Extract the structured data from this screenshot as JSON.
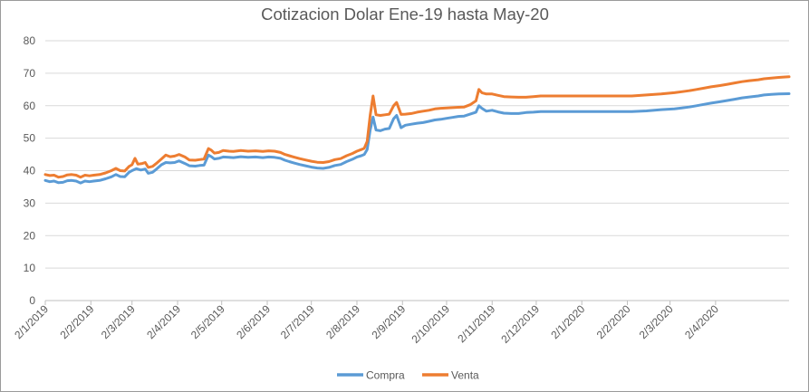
{
  "chart_data": {
    "type": "line",
    "title": "Cotizacion Dolar Ene-19 hasta May-20",
    "xlabel": "",
    "ylabel": "",
    "ylim": [
      0,
      80
    ],
    "yticks": [
      "0",
      "10",
      "20",
      "30",
      "40",
      "50",
      "60",
      "70",
      "80"
    ],
    "xticks": [
      "2/1/2019",
      "2/2/2019",
      "2/3/2019",
      "2/4/2019",
      "2/5/2019",
      "2/6/2019",
      "2/7/2019",
      "2/8/2019",
      "2/9/2019",
      "2/10/2019",
      "2/11/2019",
      "2/12/2019",
      "2/1/2020",
      "2/2/2020",
      "2/3/2020",
      "2/4/2020"
    ],
    "grid": "horizontal",
    "legend_position": "bottom",
    "x_format": "d/m/yyyy",
    "x_range": [
      "2019-01-02",
      "2020-05-22"
    ],
    "series": [
      {
        "name": "Compra",
        "color": "#5b9bd5",
        "points": [
          [
            "2019-01-02",
            37.0
          ],
          [
            "2019-01-05",
            36.6
          ],
          [
            "2019-01-08",
            36.8
          ],
          [
            "2019-01-11",
            36.3
          ],
          [
            "2019-01-14",
            36.4
          ],
          [
            "2019-01-17",
            36.9
          ],
          [
            "2019-01-20",
            37.0
          ],
          [
            "2019-01-23",
            36.8
          ],
          [
            "2019-01-26",
            36.2
          ],
          [
            "2019-01-29",
            36.8
          ],
          [
            "2019-02-01",
            36.6
          ],
          [
            "2019-02-04",
            36.8
          ],
          [
            "2019-02-08",
            37.0
          ],
          [
            "2019-02-12",
            37.5
          ],
          [
            "2019-02-16",
            38.1
          ],
          [
            "2019-02-19",
            38.8
          ],
          [
            "2019-02-22",
            38.2
          ],
          [
            "2019-02-25",
            38.1
          ],
          [
            "2019-02-28",
            39.5
          ],
          [
            "2019-03-02",
            40.0
          ],
          [
            "2019-03-05",
            40.6
          ],
          [
            "2019-03-08",
            40.2
          ],
          [
            "2019-03-11",
            40.5
          ],
          [
            "2019-03-13",
            39.2
          ],
          [
            "2019-03-16",
            39.5
          ],
          [
            "2019-03-19",
            40.6
          ],
          [
            "2019-03-22",
            41.8
          ],
          [
            "2019-03-25",
            42.5
          ],
          [
            "2019-03-28",
            42.4
          ],
          [
            "2019-03-31",
            42.5
          ],
          [
            "2019-04-03",
            43.0
          ],
          [
            "2019-04-07",
            42.2
          ],
          [
            "2019-04-10",
            41.5
          ],
          [
            "2019-04-14",
            41.4
          ],
          [
            "2019-04-17",
            41.6
          ],
          [
            "2019-04-20",
            41.7
          ],
          [
            "2019-04-23",
            44.8
          ],
          [
            "2019-04-25",
            44.3
          ],
          [
            "2019-04-27",
            43.6
          ],
          [
            "2019-04-30",
            43.8
          ],
          [
            "2019-05-03",
            44.2
          ],
          [
            "2019-05-07",
            44.1
          ],
          [
            "2019-05-10",
            44.0
          ],
          [
            "2019-05-15",
            44.3
          ],
          [
            "2019-05-20",
            44.1
          ],
          [
            "2019-05-25",
            44.2
          ],
          [
            "2019-05-30",
            44.0
          ],
          [
            "2019-06-03",
            44.2
          ],
          [
            "2019-06-07",
            44.1
          ],
          [
            "2019-06-11",
            43.8
          ],
          [
            "2019-06-14",
            43.2
          ],
          [
            "2019-06-17",
            42.8
          ],
          [
            "2019-06-20",
            42.4
          ],
          [
            "2019-06-24",
            41.9
          ],
          [
            "2019-06-28",
            41.5
          ],
          [
            "2019-07-02",
            41.1
          ],
          [
            "2019-07-06",
            40.8
          ],
          [
            "2019-07-10",
            40.7
          ],
          [
            "2019-07-14",
            41.0
          ],
          [
            "2019-07-18",
            41.6
          ],
          [
            "2019-07-22",
            41.9
          ],
          [
            "2019-07-26",
            42.8
          ],
          [
            "2019-07-30",
            43.5
          ],
          [
            "2019-08-02",
            44.2
          ],
          [
            "2019-08-05",
            44.6
          ],
          [
            "2019-08-07",
            45.0
          ],
          [
            "2019-08-09",
            46.5
          ],
          [
            "2019-08-11",
            52.5
          ],
          [
            "2019-08-13",
            56.5
          ],
          [
            "2019-08-15",
            52.5
          ],
          [
            "2019-08-18",
            52.3
          ],
          [
            "2019-08-21",
            52.8
          ],
          [
            "2019-08-24",
            53.0
          ],
          [
            "2019-08-27",
            56.0
          ],
          [
            "2019-08-29",
            57.0
          ],
          [
            "2019-09-01",
            53.2
          ],
          [
            "2019-09-04",
            54.0
          ],
          [
            "2019-09-08",
            54.3
          ],
          [
            "2019-09-12",
            54.6
          ],
          [
            "2019-09-16",
            54.8
          ],
          [
            "2019-09-20",
            55.2
          ],
          [
            "2019-09-24",
            55.6
          ],
          [
            "2019-09-28",
            55.8
          ],
          [
            "2019-10-02",
            56.1
          ],
          [
            "2019-10-06",
            56.4
          ],
          [
            "2019-10-10",
            56.7
          ],
          [
            "2019-10-14",
            56.8
          ],
          [
            "2019-10-18",
            57.4
          ],
          [
            "2019-10-22",
            58.0
          ],
          [
            "2019-10-24",
            60.0
          ],
          [
            "2019-10-26",
            59.2
          ],
          [
            "2019-10-29",
            58.3
          ],
          [
            "2019-11-02",
            58.6
          ],
          [
            "2019-11-06",
            58.1
          ],
          [
            "2019-11-10",
            57.7
          ],
          [
            "2019-11-15",
            57.6
          ],
          [
            "2019-11-20",
            57.6
          ],
          [
            "2019-11-25",
            57.9
          ],
          [
            "2019-11-30",
            58.0
          ],
          [
            "2019-12-05",
            58.2
          ],
          [
            "2019-12-15",
            58.2
          ],
          [
            "2019-12-25",
            58.2
          ],
          [
            "2020-01-05",
            58.2
          ],
          [
            "2020-01-15",
            58.2
          ],
          [
            "2020-01-25",
            58.2
          ],
          [
            "2020-02-05",
            58.2
          ],
          [
            "2020-02-15",
            58.4
          ],
          [
            "2020-02-25",
            58.8
          ],
          [
            "2020-03-05",
            59.0
          ],
          [
            "2020-03-10",
            59.3
          ],
          [
            "2020-03-15",
            59.6
          ],
          [
            "2020-03-20",
            60.0
          ],
          [
            "2020-03-25",
            60.4
          ],
          [
            "2020-03-30",
            60.8
          ],
          [
            "2020-04-05",
            61.2
          ],
          [
            "2020-04-10",
            61.6
          ],
          [
            "2020-04-15",
            62.0
          ],
          [
            "2020-04-20",
            62.4
          ],
          [
            "2020-04-25",
            62.7
          ],
          [
            "2020-05-01",
            63.0
          ],
          [
            "2020-05-05",
            63.3
          ],
          [
            "2020-05-10",
            63.5
          ],
          [
            "2020-05-15",
            63.6
          ],
          [
            "2020-05-22",
            63.7
          ]
        ]
      },
      {
        "name": "Venta",
        "color": "#ed7d31",
        "points": [
          [
            "2019-01-02",
            38.8
          ],
          [
            "2019-01-05",
            38.5
          ],
          [
            "2019-01-08",
            38.6
          ],
          [
            "2019-01-11",
            38.0
          ],
          [
            "2019-01-14",
            38.2
          ],
          [
            "2019-01-17",
            38.7
          ],
          [
            "2019-01-20",
            38.8
          ],
          [
            "2019-01-23",
            38.6
          ],
          [
            "2019-01-26",
            38.0
          ],
          [
            "2019-01-29",
            38.6
          ],
          [
            "2019-02-01",
            38.4
          ],
          [
            "2019-02-04",
            38.6
          ],
          [
            "2019-02-08",
            38.8
          ],
          [
            "2019-02-12",
            39.3
          ],
          [
            "2019-02-16",
            40.0
          ],
          [
            "2019-02-19",
            40.7
          ],
          [
            "2019-02-22",
            40.0
          ],
          [
            "2019-02-25",
            39.9
          ],
          [
            "2019-02-28",
            41.3
          ],
          [
            "2019-03-02",
            41.8
          ],
          [
            "2019-03-04",
            43.8
          ],
          [
            "2019-03-06",
            42.0
          ],
          [
            "2019-03-09",
            42.2
          ],
          [
            "2019-03-11",
            42.5
          ],
          [
            "2019-03-13",
            41.0
          ],
          [
            "2019-03-16",
            41.3
          ],
          [
            "2019-03-19",
            42.4
          ],
          [
            "2019-03-22",
            43.6
          ],
          [
            "2019-03-25",
            44.8
          ],
          [
            "2019-03-28",
            44.3
          ],
          [
            "2019-03-31",
            44.5
          ],
          [
            "2019-04-03",
            45.0
          ],
          [
            "2019-04-07",
            44.2
          ],
          [
            "2019-04-10",
            43.3
          ],
          [
            "2019-04-14",
            43.2
          ],
          [
            "2019-04-17",
            43.4
          ],
          [
            "2019-04-20",
            43.6
          ],
          [
            "2019-04-23",
            46.8
          ],
          [
            "2019-04-25",
            46.3
          ],
          [
            "2019-04-27",
            45.4
          ],
          [
            "2019-04-30",
            45.6
          ],
          [
            "2019-05-03",
            46.2
          ],
          [
            "2019-05-07",
            46.0
          ],
          [
            "2019-05-10",
            45.9
          ],
          [
            "2019-05-15",
            46.2
          ],
          [
            "2019-05-20",
            46.0
          ],
          [
            "2019-05-25",
            46.1
          ],
          [
            "2019-05-30",
            45.9
          ],
          [
            "2019-06-03",
            46.1
          ],
          [
            "2019-06-07",
            46.0
          ],
          [
            "2019-06-11",
            45.6
          ],
          [
            "2019-06-14",
            45.0
          ],
          [
            "2019-06-17",
            44.6
          ],
          [
            "2019-06-20",
            44.2
          ],
          [
            "2019-06-24",
            43.7
          ],
          [
            "2019-06-28",
            43.3
          ],
          [
            "2019-07-02",
            42.9
          ],
          [
            "2019-07-06",
            42.6
          ],
          [
            "2019-07-10",
            42.5
          ],
          [
            "2019-07-14",
            42.8
          ],
          [
            "2019-07-18",
            43.4
          ],
          [
            "2019-07-22",
            43.7
          ],
          [
            "2019-07-26",
            44.6
          ],
          [
            "2019-07-30",
            45.3
          ],
          [
            "2019-08-02",
            46.0
          ],
          [
            "2019-08-05",
            46.5
          ],
          [
            "2019-08-07",
            46.9
          ],
          [
            "2019-08-09",
            49.0
          ],
          [
            "2019-08-11",
            57.0
          ],
          [
            "2019-08-13",
            63.0
          ],
          [
            "2019-08-15",
            57.2
          ],
          [
            "2019-08-18",
            57.0
          ],
          [
            "2019-08-21",
            57.2
          ],
          [
            "2019-08-24",
            57.4
          ],
          [
            "2019-08-27",
            60.0
          ],
          [
            "2019-08-29",
            61.0
          ],
          [
            "2019-09-01",
            57.3
          ],
          [
            "2019-09-04",
            57.4
          ],
          [
            "2019-09-08",
            57.6
          ],
          [
            "2019-09-12",
            58.0
          ],
          [
            "2019-09-16",
            58.3
          ],
          [
            "2019-09-20",
            58.6
          ],
          [
            "2019-09-24",
            59.0
          ],
          [
            "2019-09-28",
            59.2
          ],
          [
            "2019-10-02",
            59.3
          ],
          [
            "2019-10-06",
            59.4
          ],
          [
            "2019-10-10",
            59.5
          ],
          [
            "2019-10-14",
            59.6
          ],
          [
            "2019-10-18",
            60.3
          ],
          [
            "2019-10-22",
            61.5
          ],
          [
            "2019-10-24",
            65.0
          ],
          [
            "2019-10-26",
            64.0
          ],
          [
            "2019-10-29",
            63.6
          ],
          [
            "2019-11-02",
            63.6
          ],
          [
            "2019-11-06",
            63.2
          ],
          [
            "2019-11-10",
            62.8
          ],
          [
            "2019-11-15",
            62.7
          ],
          [
            "2019-11-20",
            62.6
          ],
          [
            "2019-11-25",
            62.6
          ],
          [
            "2019-11-30",
            62.8
          ],
          [
            "2019-12-05",
            63.0
          ],
          [
            "2019-12-15",
            63.0
          ],
          [
            "2019-12-25",
            63.0
          ],
          [
            "2020-01-05",
            63.0
          ],
          [
            "2020-01-15",
            63.0
          ],
          [
            "2020-01-25",
            63.0
          ],
          [
            "2020-02-05",
            63.0
          ],
          [
            "2020-02-15",
            63.3
          ],
          [
            "2020-02-25",
            63.6
          ],
          [
            "2020-03-05",
            64.0
          ],
          [
            "2020-03-10",
            64.3
          ],
          [
            "2020-03-15",
            64.6
          ],
          [
            "2020-03-20",
            65.0
          ],
          [
            "2020-03-25",
            65.4
          ],
          [
            "2020-03-30",
            65.8
          ],
          [
            "2020-04-05",
            66.2
          ],
          [
            "2020-04-10",
            66.6
          ],
          [
            "2020-04-15",
            67.0
          ],
          [
            "2020-04-20",
            67.4
          ],
          [
            "2020-04-25",
            67.7
          ],
          [
            "2020-05-01",
            68.0
          ],
          [
            "2020-05-05",
            68.3
          ],
          [
            "2020-05-10",
            68.5
          ],
          [
            "2020-05-15",
            68.7
          ],
          [
            "2020-05-22",
            68.9
          ]
        ]
      }
    ]
  }
}
